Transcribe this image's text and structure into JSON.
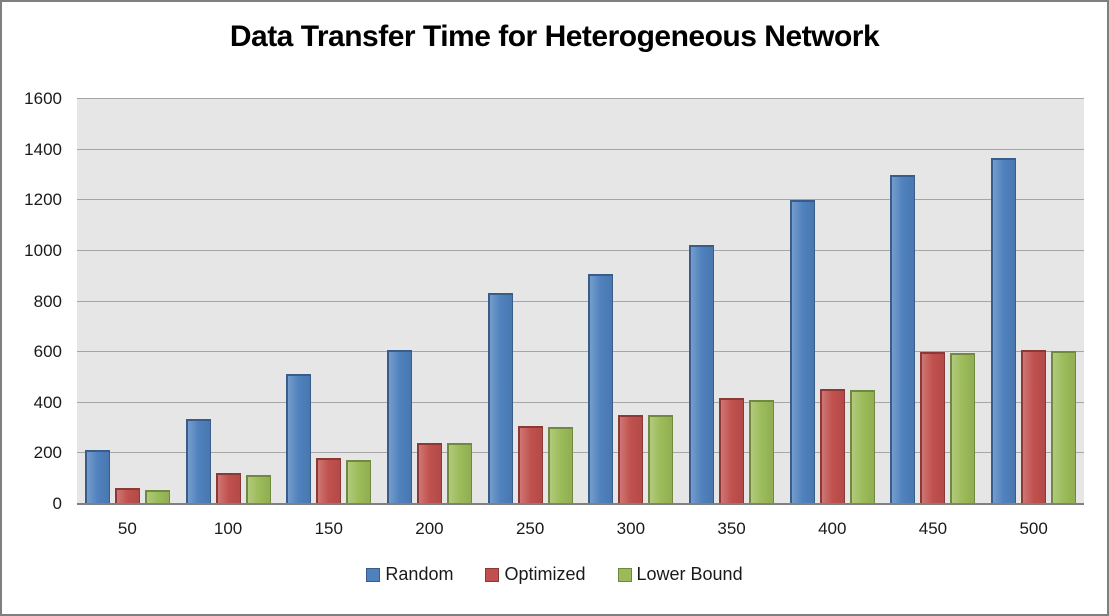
{
  "title": "Data Transfer Time for Heterogeneous Network",
  "colors": {
    "plot_background": "#e6e6e6",
    "gridline": "#a6a6a6",
    "axis_line": "#808080",
    "frame_border": "#7f7f7f",
    "series_blue": "#4f81bd",
    "series_blue_border": "#385d8a",
    "series_red": "#c0504d",
    "series_red_border": "#8c3836",
    "series_green": "#9bbb59",
    "series_green_border": "#71893f"
  },
  "chart_data": {
    "type": "bar",
    "title": "Data Transfer Time for Heterogeneous Network",
    "categories": [
      "50",
      "100",
      "150",
      "200",
      "250",
      "300",
      "350",
      "400",
      "450",
      "500"
    ],
    "series": [
      {
        "name": "Random",
        "color": "#4f81bd",
        "border": "#385d8a",
        "values": [
          215,
          335,
          515,
          610,
          835,
          910,
          1025,
          1200,
          1300,
          1365
        ]
      },
      {
        "name": "Optimized",
        "color": "#c0504d",
        "border": "#8c3836",
        "values": [
          65,
          122,
          180,
          242,
          310,
          352,
          420,
          455,
          600,
          610
        ]
      },
      {
        "name": "Lower Bound",
        "color": "#9bbb59",
        "border": "#71893f",
        "values": [
          55,
          115,
          175,
          240,
          305,
          350,
          410,
          450,
          595,
          605
        ]
      }
    ],
    "xlabel": "",
    "ylabel": "",
    "ylim": [
      0,
      1600
    ],
    "yticks": [
      0,
      200,
      400,
      600,
      800,
      1000,
      1200,
      1400,
      1600
    ],
    "grid": true,
    "legend_position": "bottom",
    "legend_labels": [
      "Random",
      "Optimized",
      "Lower Bound"
    ]
  }
}
